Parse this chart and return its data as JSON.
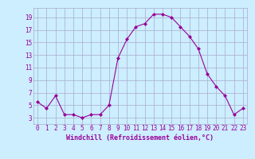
{
  "x": [
    0,
    1,
    2,
    3,
    4,
    5,
    6,
    7,
    8,
    9,
    10,
    11,
    12,
    13,
    14,
    15,
    16,
    17,
    18,
    19,
    20,
    21,
    22,
    23
  ],
  "y": [
    5.5,
    4.5,
    6.5,
    3.5,
    3.5,
    3.0,
    3.5,
    3.5,
    5.0,
    12.5,
    15.5,
    17.5,
    18.0,
    19.5,
    19.5,
    19.0,
    17.5,
    16.0,
    14.0,
    10.0,
    8.0,
    6.5,
    3.5,
    4.5
  ],
  "line_color": "#990099",
  "marker": "D",
  "marker_size": 2,
  "xlabel": "Windchill (Refroidissement éolien,°C)",
  "ylabel": "",
  "xlim": [
    -0.5,
    23.5
  ],
  "ylim": [
    2.0,
    20.5
  ],
  "yticks": [
    3,
    5,
    7,
    9,
    11,
    13,
    15,
    17,
    19
  ],
  "xticks": [
    0,
    1,
    2,
    3,
    4,
    5,
    6,
    7,
    8,
    9,
    10,
    11,
    12,
    13,
    14,
    15,
    16,
    17,
    18,
    19,
    20,
    21,
    22,
    23
  ],
  "background_color": "#cceeff",
  "grid_color": "#aaaacc",
  "xlabel_color": "#990099",
  "tick_color": "#990099",
  "tick_fontsize": 5.5,
  "xlabel_fontsize": 6.0
}
